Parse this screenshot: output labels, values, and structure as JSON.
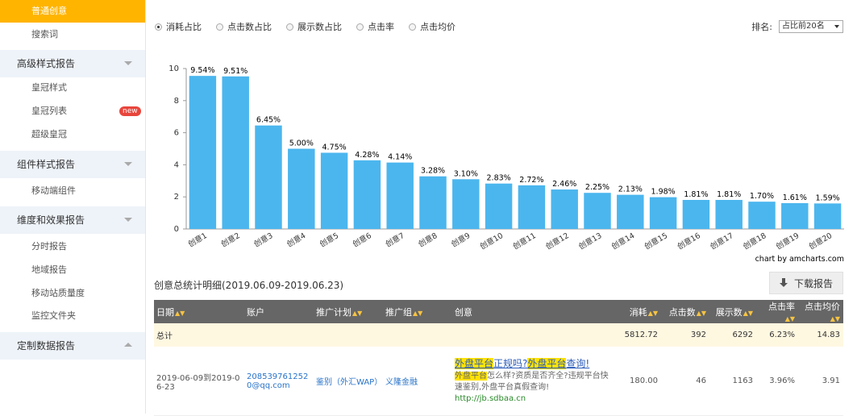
{
  "sidebar": {
    "items": [
      {
        "label": "普通创意",
        "type": "sub",
        "active": true
      },
      {
        "label": "搜索词",
        "type": "sub"
      },
      {
        "label": "高级样式报告",
        "type": "head",
        "arrow": "down"
      },
      {
        "label": "皇冠样式",
        "type": "sub"
      },
      {
        "label": "皇冠列表",
        "type": "sub",
        "badge": "new"
      },
      {
        "label": "超级皇冠",
        "type": "sub"
      },
      {
        "label": "组件样式报告",
        "type": "head",
        "arrow": "down"
      },
      {
        "label": "移动端组件",
        "type": "sub"
      },
      {
        "label": "维度和效果报告",
        "type": "head",
        "arrow": "down"
      },
      {
        "label": "分时报告",
        "type": "sub"
      },
      {
        "label": "地域报告",
        "type": "sub"
      },
      {
        "label": "移动站质量度",
        "type": "sub"
      },
      {
        "label": "监控文件夹",
        "type": "sub"
      },
      {
        "label": "定制数据报告",
        "type": "head",
        "arrow": "up"
      }
    ]
  },
  "metric_options": [
    "消耗占比",
    "点击数占比",
    "展示数占比",
    "点击率",
    "点击均价"
  ],
  "selected_metric": "消耗占比",
  "sort": {
    "label": "排名:",
    "value": "占比前20名"
  },
  "chart_data": {
    "type": "bar",
    "categories": [
      "创意1",
      "创意2",
      "创意3",
      "创意4",
      "创意5",
      "创意6",
      "创意7",
      "创意8",
      "创意9",
      "创意10",
      "创意11",
      "创意12",
      "创意13",
      "创意14",
      "创意15",
      "创意16",
      "创意17",
      "创意18",
      "创意19",
      "创意20"
    ],
    "values": [
      9.54,
      9.51,
      6.45,
      5.0,
      4.75,
      4.28,
      4.14,
      3.28,
      3.1,
      2.83,
      2.72,
      2.46,
      2.25,
      2.13,
      1.98,
      1.81,
      1.81,
      1.7,
      1.61,
      1.59
    ],
    "labels": [
      "9.54%",
      "9.51%",
      "6.45%",
      "5.00%",
      "4.75%",
      "4.28%",
      "4.14%",
      "3.28%",
      "3.10%",
      "2.83%",
      "2.72%",
      "2.46%",
      "2.25%",
      "2.13%",
      "1.98%",
      "1.81%",
      "1.81%",
      "1.70%",
      "1.61%",
      "1.59%"
    ],
    "ylim": [
      0,
      10
    ],
    "yticks": [
      0,
      2,
      4,
      6,
      8,
      10
    ],
    "bar_color": "#4bb6ee",
    "credit": "chart by amcharts.com"
  },
  "section": {
    "title": "创意总统计明细(2019.06.09-2019.06.23)",
    "download": "下载报告"
  },
  "table": {
    "headers": [
      "日期",
      "账户",
      "推广计划",
      "推广组",
      "创意",
      "消耗",
      "点击数",
      "展示数",
      "点击率",
      "点击均价"
    ],
    "total": {
      "label": "总计",
      "cost": "5812.72",
      "clicks": "392",
      "impressions": "6292",
      "ctr": "6.23%",
      "cpc": "14.83"
    },
    "row": {
      "date": "2019-06-09到2019-06-23",
      "account": "2085397612520@qq.com",
      "plan": "鉴别（外汇WAP）",
      "group": "义隆金融",
      "creative_title_hl": "外盘平台",
      "creative_title_1": "正规吗?",
      "creative_title_hl2": "外盘平台",
      "creative_title_2": "查询!",
      "creative_desc_hl": "外盘平台",
      "creative_desc": "怎么样?资质是否齐全?违规平台快速鉴别,外盘平台真假查询!",
      "creative_url": "http://jb.sdbaa.cn",
      "cost": "180.00",
      "clicks": "46",
      "impressions": "1163",
      "ctr": "3.96%",
      "cpc": "3.91"
    }
  }
}
